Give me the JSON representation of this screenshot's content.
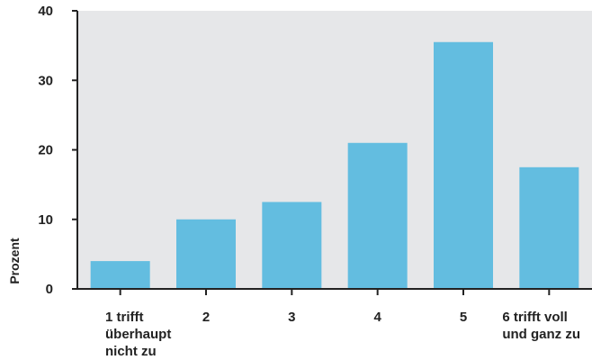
{
  "chart_data": {
    "type": "bar",
    "title": "",
    "xlabel": "",
    "ylabel": "Prozent",
    "ylim": [
      0,
      40
    ],
    "yticks": [
      0,
      10,
      20,
      30,
      40
    ],
    "grid": false,
    "categories": [
      [
        "1 trifft",
        "überhaupt",
        "nicht zu"
      ],
      [
        "2"
      ],
      [
        "3"
      ],
      [
        "4"
      ],
      [
        "5"
      ],
      [
        "6 trifft voll",
        "und ganz zu"
      ]
    ],
    "values": [
      4,
      10,
      12.5,
      21,
      35.5,
      17.5
    ],
    "colors": {
      "bar": "#63bde0",
      "plot_background": "#e6e7e9",
      "axis": "#222222"
    }
  }
}
